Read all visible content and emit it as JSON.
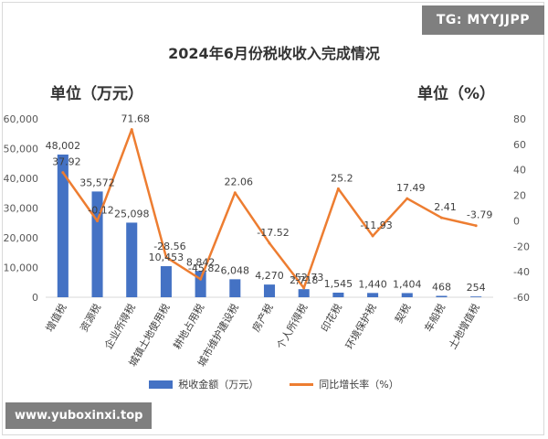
{
  "watermark_top": "TG: MYYJJPP",
  "watermark_bottom": "www.yuboxinxi.top",
  "chart_data": {
    "type": "bar",
    "title": "2024年6月份税收收入完成情况",
    "unit_left": "单位（万元）",
    "unit_right": "单位（%）",
    "categories": [
      "增值税",
      "资源税",
      "企业所得税",
      "城镇土地使用税",
      "耕地占用税",
      "城市维护建设税",
      "房产税",
      "个人所得税",
      "印花税",
      "环境保护税",
      "契税",
      "车船税",
      "土地增值税"
    ],
    "series": [
      {
        "name": "税收金额（万元）",
        "type": "bar",
        "axis": "left",
        "color": "#4472c4",
        "values": [
          48002,
          35572,
          25098,
          10453,
          8842,
          6048,
          4270,
          2718,
          1545,
          1440,
          1404,
          468,
          254
        ],
        "labels": [
          "48,002",
          "35,572",
          "25,098",
          "10,453",
          "8,842",
          "6,048",
          "4,270",
          "2,718",
          "1,545",
          "1,440",
          "1,404",
          "468",
          "254"
        ]
      },
      {
        "name": "同比增长率（%）",
        "type": "line",
        "axis": "right",
        "color": "#ed7d31",
        "values": [
          37.92,
          -0.12,
          71.68,
          -28.56,
          -45.82,
          22.06,
          -17.52,
          -52.73,
          25.2,
          -11.93,
          17.49,
          2.41,
          -3.79
        ],
        "labels": [
          "37.92",
          "-0.12",
          "71.68",
          "-28.56",
          "-45.82",
          "22.06",
          "-17.52",
          "-52.73",
          "25.2",
          "-11.93",
          "17.49",
          "2.41",
          "-3.79"
        ]
      }
    ],
    "y_left": {
      "min": 0,
      "max": 60000,
      "ticks": [
        "0",
        "10,000",
        "20,000",
        "30,000",
        "40,000",
        "50,000",
        "60,000"
      ]
    },
    "y_right": {
      "min": -60,
      "max": 80,
      "ticks": [
        "-60",
        "-40",
        "-20",
        "0",
        "20",
        "40",
        "60",
        "80"
      ]
    },
    "grid": false,
    "legend_position": "bottom"
  }
}
